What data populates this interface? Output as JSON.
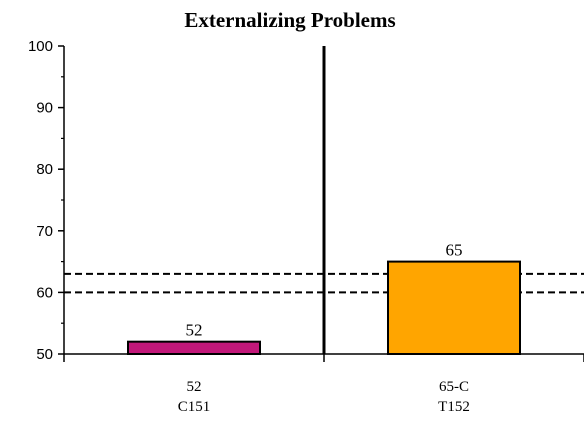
{
  "chart_data": {
    "type": "bar",
    "title": "Externalizing Problems",
    "xlabel": "",
    "ylabel": "",
    "ylim": [
      50,
      100
    ],
    "yticks": [
      50,
      60,
      70,
      80,
      90,
      100
    ],
    "categories": [
      {
        "value_label": "52",
        "code": "C151"
      },
      {
        "value_label": "65-C",
        "code": "T152"
      }
    ],
    "values": [
      52,
      65
    ],
    "data_labels": [
      "52",
      "65"
    ],
    "bar_colors": [
      "#c2187a",
      "#ffa500"
    ],
    "reference_lines": [
      60,
      63
    ],
    "reference_line_style": "dashed",
    "grid": false,
    "legend": "none"
  }
}
